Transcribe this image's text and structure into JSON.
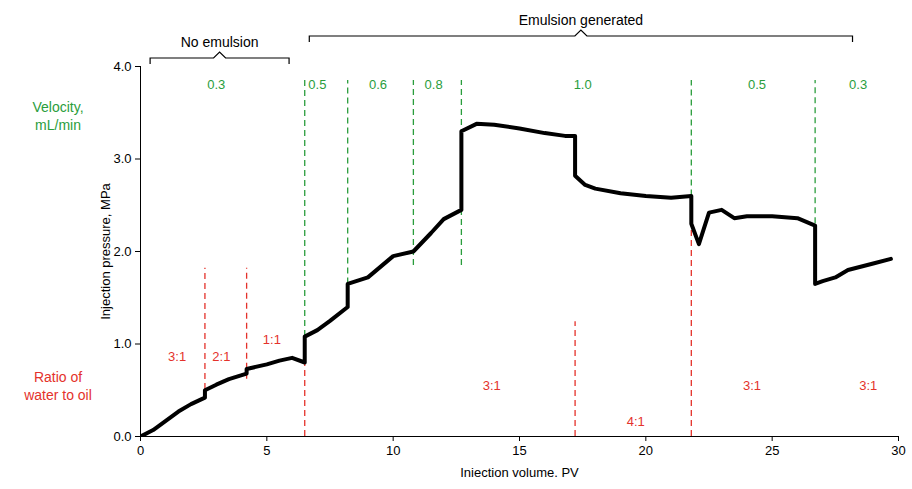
{
  "chart_data": {
    "type": "line",
    "x_label": "Iniection volume. PV",
    "y_label": "Injection pressure, MPa",
    "x": [
      0,
      0.5,
      1,
      1.5,
      2,
      2.55,
      2.55,
      3,
      3.5,
      4.2,
      4.2,
      5,
      5.5,
      6,
      6.5,
      6.5,
      7,
      7.5,
      8.2,
      8.2,
      9,
      10,
      10.8,
      11.5,
      12,
      12.7,
      12.7,
      13.3,
      14,
      15,
      16,
      16.8,
      17.2,
      17.2,
      17.6,
      18,
      19,
      20,
      21,
      21.8,
      21.8,
      22.1,
      22.5,
      23,
      23.5,
      24,
      25,
      26,
      26.7,
      26.7,
      27,
      27.5,
      28,
      29,
      29.7
    ],
    "values": [
      0,
      0.07,
      0.17,
      0.27,
      0.35,
      0.42,
      0.5,
      0.56,
      0.62,
      0.68,
      0.73,
      0.78,
      0.82,
      0.85,
      0.8,
      1.08,
      1.15,
      1.25,
      1.4,
      1.65,
      1.72,
      1.95,
      2.0,
      2.2,
      2.35,
      2.45,
      3.3,
      3.38,
      3.37,
      3.33,
      3.28,
      3.25,
      3.25,
      2.82,
      2.72,
      2.68,
      2.63,
      2.6,
      2.58,
      2.6,
      2.3,
      2.08,
      2.42,
      2.45,
      2.36,
      2.38,
      2.38,
      2.36,
      2.28,
      1.65,
      1.68,
      1.72,
      1.8,
      1.87,
      1.92
    ],
    "color": "#000000",
    "xlim": [
      0,
      30
    ],
    "ylim": [
      0,
      4
    ],
    "xticks": [
      0,
      5,
      10,
      15,
      20,
      25,
      30
    ],
    "yticks": [
      0,
      1,
      2,
      3,
      4
    ],
    "grid": false,
    "brackets": [
      {
        "text": "No emulsion",
        "x": [
          0.4,
          5.9
        ]
      },
      {
        "text": "Emulsion generated",
        "x": [
          6.7,
          28.2
        ]
      }
    ],
    "velocity": {
      "title": "Velocity, mL/min",
      "color": "#2a9d3c",
      "lines": [
        {
          "x": 6.5,
          "y": [
            1.08,
            3.85
          ]
        },
        {
          "x": 8.2,
          "y": [
            1.65,
            3.85
          ]
        },
        {
          "x": 10.8,
          "y": [
            1.85,
            3.85
          ]
        },
        {
          "x": 12.7,
          "y": [
            1.85,
            3.85
          ]
        },
        {
          "x": 21.8,
          "y": [
            2.6,
            3.85
          ]
        },
        {
          "x": 26.7,
          "y": [
            2.3,
            3.85
          ]
        }
      ],
      "labels": [
        {
          "text": "0.3",
          "x": 3.0,
          "y": 3.8
        },
        {
          "text": "0.5",
          "x": 7.0,
          "y": 3.8
        },
        {
          "text": "0.6",
          "x": 9.4,
          "y": 3.8
        },
        {
          "text": "0.8",
          "x": 11.6,
          "y": 3.8
        },
        {
          "text": "1.0",
          "x": 17.5,
          "y": 3.8
        },
        {
          "text": "0.5",
          "x": 24.4,
          "y": 3.8
        },
        {
          "text": "0.3",
          "x": 28.4,
          "y": 3.8
        }
      ]
    },
    "ratio": {
      "title": "Ratio of water to oil",
      "color": "#e4322b",
      "lines": [
        {
          "x": 2.55,
          "y": [
            0.4,
            1.82
          ]
        },
        {
          "x": 4.2,
          "y": [
            0.62,
            1.82
          ]
        },
        {
          "x": 6.5,
          "y": [
            0,
            1.0
          ]
        },
        {
          "x": 17.2,
          "y": [
            0,
            1.24
          ]
        },
        {
          "x": 21.8,
          "y": [
            0,
            2.3
          ]
        }
      ],
      "labels": [
        {
          "text": "3:1",
          "x": 1.45,
          "y": 0.86
        },
        {
          "text": "2:1",
          "x": 3.2,
          "y": 0.86
        },
        {
          "text": "1:1",
          "x": 5.2,
          "y": 1.05
        },
        {
          "text": "3:1",
          "x": 13.9,
          "y": 0.55
        },
        {
          "text": "4:1",
          "x": 19.6,
          "y": 0.16
        },
        {
          "text": "3:1",
          "x": 24.2,
          "y": 0.55
        },
        {
          "text": "3:1",
          "x": 28.8,
          "y": 0.55
        }
      ]
    }
  }
}
